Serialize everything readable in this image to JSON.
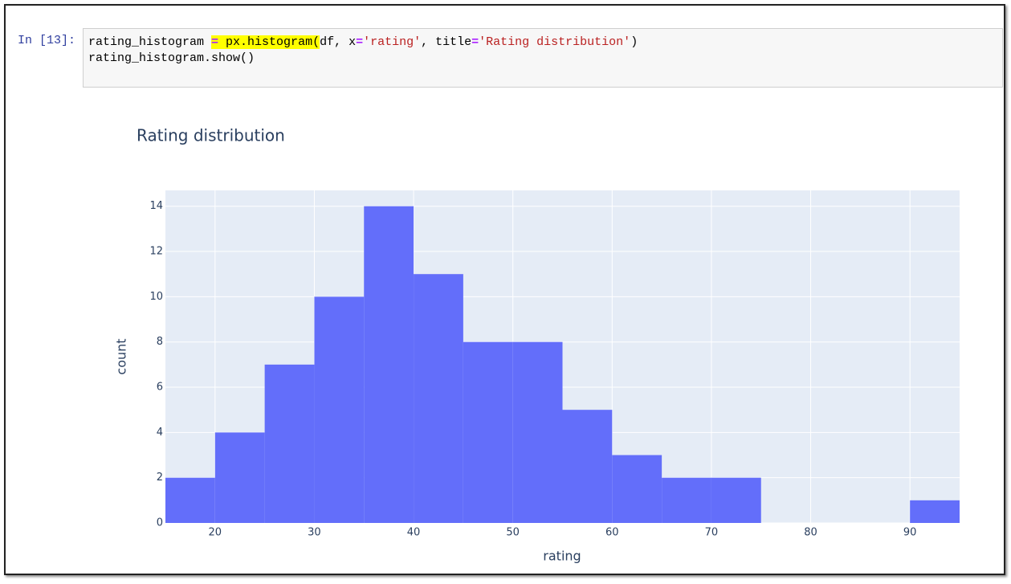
{
  "cell": {
    "prompt": "In [13]:",
    "code": [
      [
        "rating_histogram ",
        "=",
        " px.histogram(",
        "df, x",
        "=",
        "'rating'",
        ", title",
        "=",
        "'Rating distribution'",
        ")"
      ],
      [
        "rating_histogram.show()"
      ]
    ]
  },
  "chart_data": {
    "type": "histogram",
    "title": "Rating distribution",
    "x_label": "rating",
    "y_label": "count",
    "color": "#636efa",
    "bins": [
      15,
      20,
      25,
      30,
      35,
      40,
      45,
      50,
      55,
      60,
      65,
      70,
      75,
      80,
      85,
      90,
      95
    ],
    "values": [
      2,
      4,
      7,
      10,
      14,
      11,
      8,
      8,
      5,
      3,
      2,
      2,
      0,
      0,
      0,
      1
    ],
    "xlim": [
      15,
      95
    ],
    "xticks": [
      20,
      30,
      40,
      50,
      60,
      70,
      80,
      90
    ],
    "ylim": [
      0,
      14.7
    ],
    "yticks": [
      0,
      2,
      4,
      6,
      8,
      10,
      12,
      14
    ],
    "grid": true
  }
}
